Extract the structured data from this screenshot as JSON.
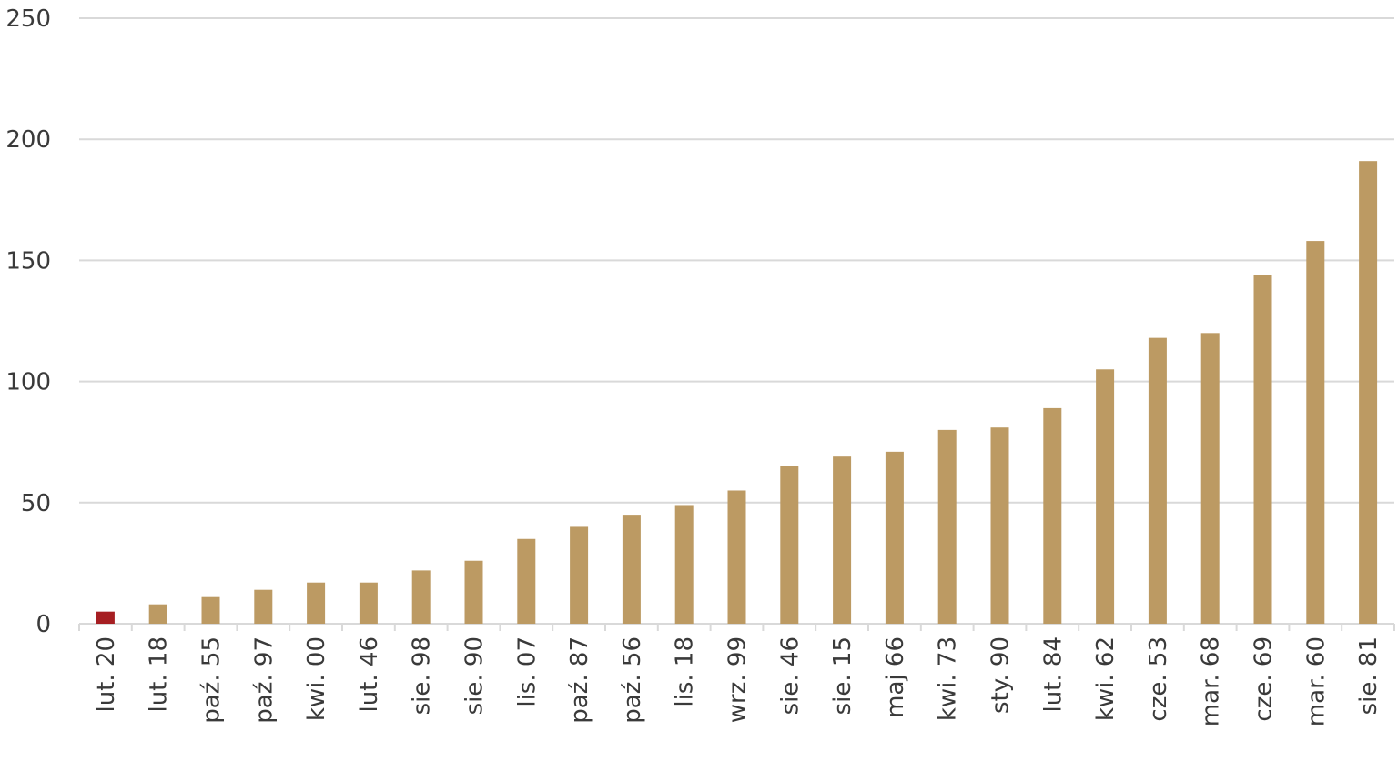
{
  "chart_data": {
    "type": "bar",
    "categories": [
      "lut. 20",
      "lut. 18",
      "paź. 55",
      "paź. 97",
      "kwi. 00",
      "lut. 46",
      "sie. 98",
      "sie. 90",
      "lis. 07",
      "paź. 87",
      "paź. 56",
      "lis. 18",
      "wrz. 99",
      "sie. 46",
      "sie. 15",
      "maj 66",
      "kwi. 73",
      "sty. 90",
      "lut. 84",
      "kwi. 62",
      "cze. 53",
      "mar. 68",
      "cze. 69",
      "mar. 60",
      "sie. 81"
    ],
    "values": [
      5,
      8,
      11,
      14,
      17,
      17,
      22,
      26,
      35,
      40,
      45,
      49,
      55,
      65,
      69,
      71,
      80,
      81,
      89,
      105,
      118,
      120,
      144,
      158,
      191
    ],
    "highlight_index": 0,
    "colors": {
      "bar": "#bc9a63",
      "highlight": "#a61e22"
    },
    "ylim": [
      0,
      250
    ],
    "yticks": [
      0,
      50,
      100,
      150,
      200,
      250
    ],
    "grid": true,
    "legend": "none"
  }
}
